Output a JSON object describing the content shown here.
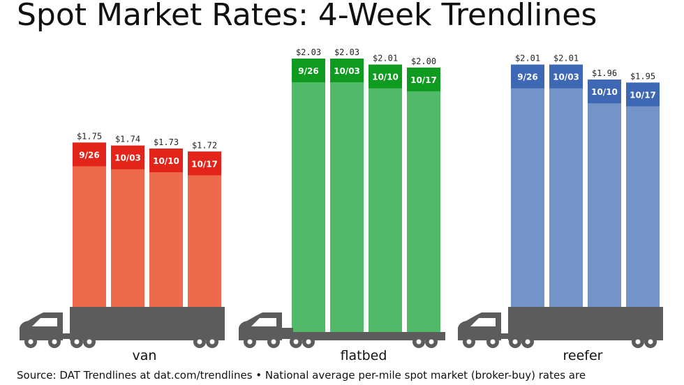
{
  "chart_data": {
    "type": "bar",
    "title": "Spot Market Rates: 4-Week Trendlines",
    "categories": [
      "9/26",
      "10/03",
      "10/10",
      "10/17"
    ],
    "units": "$ per mile",
    "series": [
      {
        "name": "van",
        "values": [
          1.75,
          1.74,
          1.73,
          1.72
        ],
        "value_labels": [
          "$1.75",
          "$1.74",
          "$1.73",
          "$1.72"
        ],
        "color": "#ee6a4c",
        "cap_color": "#e2241a"
      },
      {
        "name": "flatbed",
        "values": [
          2.03,
          2.03,
          2.01,
          2.0
        ],
        "value_labels": [
          "$2.03",
          "$2.03",
          "$2.01",
          "$2.00"
        ],
        "color": "#52b96a",
        "cap_color": "#0e9b1f"
      },
      {
        "name": "reefer",
        "values": [
          2.01,
          2.01,
          1.96,
          1.95
        ],
        "value_labels": [
          "$2.01",
          "$2.01",
          "$1.96",
          "$1.95"
        ],
        "color": "#7493c7",
        "cap_color": "#3f68b4"
      }
    ],
    "legend": "none",
    "grid": false,
    "source": "Source: DAT Trendlines at dat.com/trendlines • National average per-mile spot market (broker-buy) rates are"
  },
  "colors": {
    "truck": "#5c5c5c",
    "text": "#111111"
  }
}
